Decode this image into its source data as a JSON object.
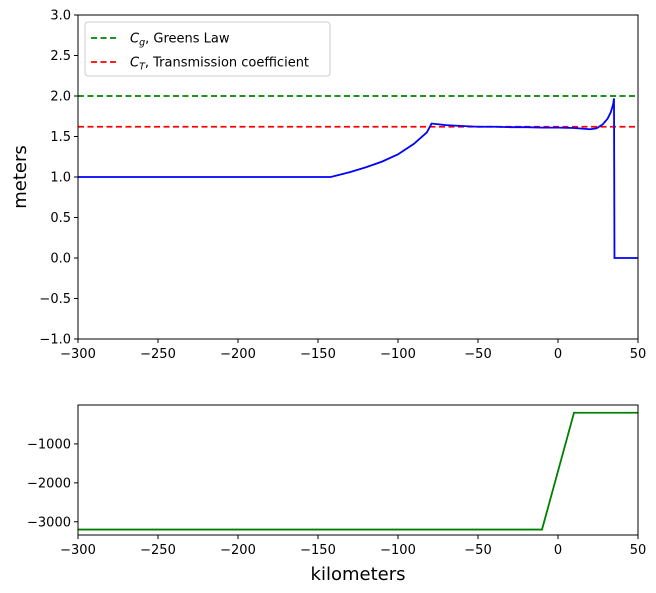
{
  "chart_data": [
    {
      "type": "line",
      "title": "",
      "xlabel": "",
      "ylabel": "meters",
      "xlim": [
        -300,
        50
      ],
      "ylim": [
        -1.0,
        3.0
      ],
      "xticks": [
        -300,
        -250,
        -200,
        -150,
        -100,
        -50,
        0,
        50
      ],
      "xtick_labels": [
        "−300",
        "−250",
        "−200",
        "−150",
        "−100",
        "−50",
        "0",
        "50"
      ],
      "yticks": [
        -1.0,
        -0.5,
        0.0,
        0.5,
        1.0,
        1.5,
        2.0,
        2.5,
        3.0
      ],
      "ytick_labels": [
        "−1.0",
        "−0.5",
        "0.0",
        "0.5",
        "1.0",
        "1.5",
        "2.0",
        "2.5",
        "3.0"
      ],
      "grid": false,
      "legend_position": "top-left",
      "series": [
        {
          "name": "$C_g$, Greens Law",
          "legend_prefix": "C",
          "legend_sub": "g",
          "legend_rest": ", Greens Law",
          "style": "dashed",
          "color": "#008000",
          "x": [
            -300,
            50
          ],
          "y": [
            2.0,
            2.0
          ]
        },
        {
          "name": "$C_T$, Transmission coefficient",
          "legend_prefix": "C",
          "legend_sub": "T",
          "legend_rest": ", Transmission coefficient",
          "style": "dashed",
          "color": "#ff0000",
          "x": [
            -300,
            50
          ],
          "y": [
            1.62,
            1.62
          ]
        },
        {
          "style": "solid",
          "color": "#0000ff",
          "x": [
            -300,
            -142,
            -130,
            -120,
            -110,
            -100,
            -90,
            -82,
            -79,
            -70,
            -60,
            -50,
            -40,
            -30,
            -20,
            -10,
            0,
            10,
            20,
            24,
            28,
            31,
            33,
            34.5,
            35,
            35.3,
            50
          ],
          "y": [
            1.0,
            1.0,
            1.06,
            1.12,
            1.19,
            1.28,
            1.41,
            1.55,
            1.66,
            1.64,
            1.63,
            1.62,
            1.62,
            1.615,
            1.615,
            1.61,
            1.61,
            1.605,
            1.59,
            1.6,
            1.65,
            1.72,
            1.8,
            1.9,
            1.97,
            0.0,
            0.0
          ]
        }
      ]
    },
    {
      "type": "line",
      "title": "",
      "xlabel": "kilometers",
      "ylabel": "",
      "xlim": [
        -300,
        50
      ],
      "ylim": [
        -3340,
        0
      ],
      "xticks": [
        -300,
        -250,
        -200,
        -150,
        -100,
        -50,
        0,
        50
      ],
      "xtick_labels": [
        "−300",
        "−250",
        "−200",
        "−150",
        "−100",
        "−50",
        "0",
        "50"
      ],
      "yticks": [
        -1000,
        -2000,
        -3000
      ],
      "ytick_labels": [
        "−1000",
        "−2000",
        "−3000"
      ],
      "grid": false,
      "series": [
        {
          "style": "solid",
          "color": "#008000",
          "x": [
            -300,
            -10,
            10,
            50
          ],
          "y": [
            -3200,
            -3200,
            -200,
            -200
          ]
        }
      ]
    }
  ]
}
